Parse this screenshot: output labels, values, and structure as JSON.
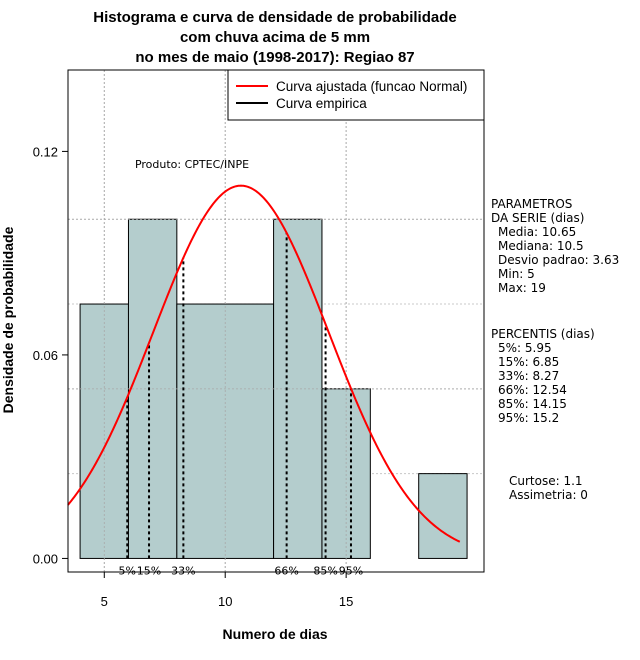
{
  "chart_data": {
    "type": "bar",
    "title_lines": [
      "Histograma e curva de densidade de probabilidade",
      "com chuva acima de 5 mm",
      "no mes de maio (1998-2017): Regiao 87"
    ],
    "xlabel": "Numero de dias",
    "ylabel": "Densidade de probabilidade",
    "xlim": [
      3.5,
      20.7
    ],
    "ylim": [
      -0.004,
      0.144
    ],
    "xticks": [
      5,
      10,
      15
    ],
    "xtick_labels": [
      "5",
      "10",
      "15"
    ],
    "yticks": [
      0.0,
      0.06,
      0.12
    ],
    "ytick_labels": [
      "0.00",
      "0.06",
      "0.12"
    ],
    "grid": true,
    "bins": [
      {
        "from": 4,
        "to": 6,
        "density": 0.075
      },
      {
        "from": 6,
        "to": 8,
        "density": 0.1
      },
      {
        "from": 8,
        "to": 12,
        "density": 0.075
      },
      {
        "from": 12,
        "to": 14,
        "density": 0.1
      },
      {
        "from": 14,
        "to": 16,
        "density": 0.05
      },
      {
        "from": 16,
        "to": 18,
        "density": 0
      },
      {
        "from": 18,
        "to": 20,
        "density": 0.025
      }
    ],
    "bar_color": "#b4cdcd",
    "normal_curve": {
      "name": "Curva ajustada (funcao Normal)",
      "mean": 10.65,
      "sd": 3.63,
      "x_range": [
        3.5,
        19.7
      ],
      "color": "#ff0000"
    },
    "empirical_curve": {
      "name": "Curva empirica",
      "color": "#000000"
    },
    "legend_position": "top-right",
    "percentile_lines": [
      {
        "label": "5%",
        "x": 5.95
      },
      {
        "label": "15%",
        "x": 6.85
      },
      {
        "label": "33%",
        "x": 8.27
      },
      {
        "label": "66%",
        "x": 12.54
      },
      {
        "label": "85%",
        "x": 14.15
      },
      {
        "label": "95%",
        "x": 15.2
      }
    ],
    "product_label": "Produto: CPTEC/INPE",
    "parametros": {
      "header": [
        "PARAMETROS",
        "DA SERIE (dias)"
      ],
      "lines": [
        "Media: 10.65",
        "Mediana: 10.5",
        "Desvio padrao: 3.63",
        "Min: 5",
        "Max: 19"
      ]
    },
    "percentis": {
      "header": "PERCENTIS (dias)",
      "lines": [
        "5%: 5.95",
        "15%: 6.85",
        "33%: 8.27",
        "66%: 12.54",
        "85%: 14.15",
        "95%: 15.2"
      ]
    },
    "stats": [
      "Curtose: 1.1",
      "Assimetria: 0"
    ]
  }
}
